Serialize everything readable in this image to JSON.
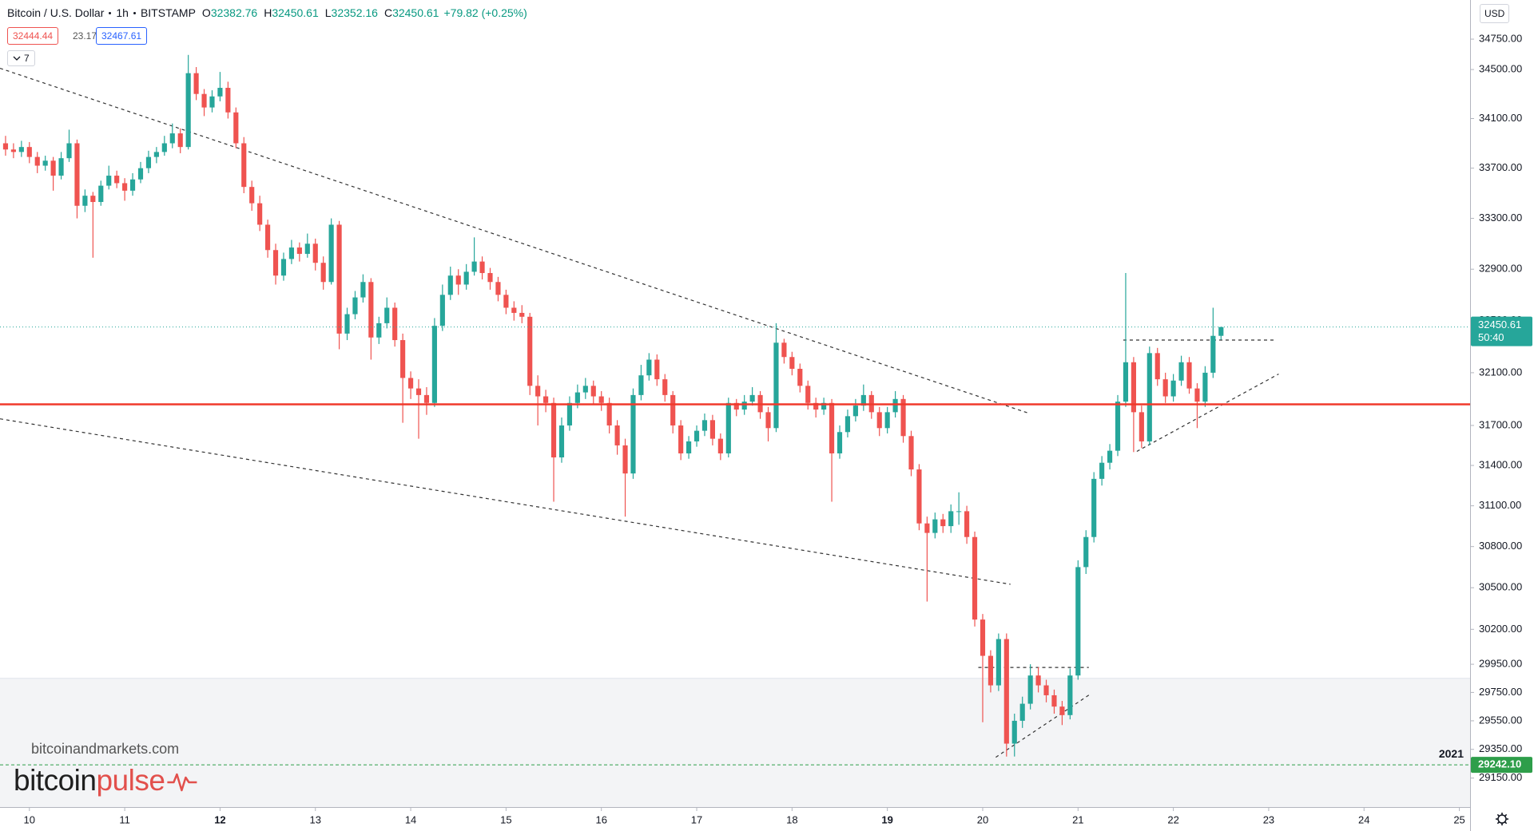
{
  "chart_data": {
    "type": "candlestick",
    "symbol": "Bitcoin / U.S. Dollar",
    "interval": "1h",
    "exchange": "BITSTAMP",
    "ohlc_labels": [
      "O",
      "H",
      "L",
      "C"
    ],
    "change": "+79.82 (+0.25%)",
    "bid": 32444.44,
    "spread": 23.17,
    "ask": 32467.61,
    "indicator_count": 7,
    "currency": "USD",
    "countdown": "50:40",
    "watermark": "bitcoinandmarkets.com",
    "logo": [
      "bitcoin",
      "pulse"
    ],
    "log": true,
    "grid": false,
    "up_color": "#26a69a",
    "down_color": "#ef5350",
    "xlim": [
      -7.4,
      362.7
    ],
    "ylim": [
      28950,
      35075
    ],
    "xticks": [
      {
        "value": 0,
        "label": "10"
      },
      {
        "value": 24,
        "label": "11"
      },
      {
        "value": 48,
        "label": "12",
        "bold": true
      },
      {
        "value": 72,
        "label": "13"
      },
      {
        "value": 96,
        "label": "14"
      },
      {
        "value": 120,
        "label": "15"
      },
      {
        "value": 144,
        "label": "16"
      },
      {
        "value": 168,
        "label": "17"
      },
      {
        "value": 192,
        "label": "18"
      },
      {
        "value": 216,
        "label": "19",
        "bold": true
      },
      {
        "value": 240,
        "label": "20"
      },
      {
        "value": 264,
        "label": "21"
      },
      {
        "value": 288,
        "label": "22"
      },
      {
        "value": 312,
        "label": "23"
      },
      {
        "value": 336,
        "label": "24"
      },
      {
        "value": 360,
        "label": "25"
      }
    ],
    "yticks": [
      {
        "value": 34750,
        "label": "34750.00"
      },
      {
        "value": 34500,
        "label": "34500.00"
      },
      {
        "value": 34100,
        "label": "34100.00"
      },
      {
        "value": 33700,
        "label": "33700.00"
      },
      {
        "value": 33300,
        "label": "33300.00"
      },
      {
        "value": 32900,
        "label": "32900.00"
      },
      {
        "value": 32500,
        "label": "32500.00"
      },
      {
        "value": 32100,
        "label": "32100.00"
      },
      {
        "value": 31700,
        "label": "31700.00"
      },
      {
        "value": 31400,
        "label": "31400.00"
      },
      {
        "value": 31100,
        "label": "31100.00"
      },
      {
        "value": 30800,
        "label": "30800.00"
      },
      {
        "value": 30500,
        "label": "30500.00"
      },
      {
        "value": 30200,
        "label": "30200.00"
      },
      {
        "value": 29950,
        "label": "29950.00"
      },
      {
        "value": 29750,
        "label": "29750.00"
      },
      {
        "value": 29550,
        "label": "29550.00"
      },
      {
        "value": 29350,
        "label": "29350.00"
      },
      {
        "value": 29150,
        "label": "29150.00"
      }
    ],
    "shaded_zone": {
      "top": 29850,
      "color": "#f3f4f6"
    },
    "horizontal_line": {
      "value": 31860,
      "color": "#f0392b"
    },
    "year_line": {
      "label": "2021",
      "price": {
        "value": 29242.1,
        "label": "29242.10"
      },
      "color": "#2e9e4a"
    },
    "trendlines": [
      {
        "points": [
          [
            -7.4,
            34510
          ],
          [
            251.2,
            31796
          ]
        ]
      },
      {
        "points": [
          [
            -7.4,
            31750
          ],
          [
            247,
            30525
          ]
        ]
      },
      {
        "points": [
          [
            275.4,
            32350
          ],
          [
            313.5,
            32350
          ]
        ]
      },
      {
        "points": [
          [
            278.8,
            31505
          ],
          [
            314.5,
            32090
          ]
        ]
      },
      {
        "points": [
          [
            238.9,
            29927
          ],
          [
            266.7,
            29927
          ]
        ]
      },
      {
        "points": [
          [
            243.3,
            29295
          ],
          [
            267.2,
            29740
          ]
        ]
      }
    ],
    "x": [
      -6,
      -4,
      -2,
      0,
      2,
      4,
      6,
      8,
      10,
      12,
      14,
      16,
      18,
      20,
      22,
      24,
      26,
      28,
      30,
      32,
      34,
      36,
      38,
      40,
      42,
      44,
      46,
      48,
      50,
      52,
      54,
      56,
      58,
      60,
      62,
      64,
      66,
      68,
      70,
      72,
      74,
      76,
      78,
      80,
      82,
      84,
      86,
      88,
      90,
      92,
      94,
      96,
      98,
      100,
      102,
      104,
      106,
      108,
      110,
      112,
      114,
      116,
      118,
      120,
      122,
      124,
      126,
      128,
      130,
      132,
      134,
      136,
      138,
      140,
      142,
      144,
      146,
      148,
      150,
      152,
      154,
      156,
      158,
      160,
      162,
      164,
      166,
      168,
      170,
      172,
      174,
      176,
      178,
      180,
      182,
      184,
      186,
      188,
      190,
      192,
      194,
      196,
      198,
      200,
      202,
      204,
      206,
      208,
      210,
      212,
      214,
      216,
      218,
      220,
      222,
      224,
      226,
      228,
      230,
      232,
      234,
      236,
      238,
      240,
      242,
      244,
      246,
      248,
      250,
      252,
      254,
      256,
      258,
      260,
      262,
      264,
      266,
      268,
      270,
      272,
      274,
      276,
      278,
      280,
      282,
      284,
      286,
      288,
      290,
      292,
      294,
      296,
      298,
      300
    ],
    "candles": [
      [
        33900,
        33960,
        33800,
        33850
      ],
      [
        33850,
        33900,
        33780,
        33830
      ],
      [
        33830,
        33920,
        33790,
        33870
      ],
      [
        33870,
        33910,
        33740,
        33790
      ],
      [
        33790,
        33830,
        33660,
        33720
      ],
      [
        33720,
        33800,
        33680,
        33760
      ],
      [
        33760,
        33790,
        33520,
        33640
      ],
      [
        33640,
        33830,
        33610,
        33780
      ],
      [
        33780,
        34010,
        33750,
        33900
      ],
      [
        33900,
        33930,
        33300,
        33400
      ],
      [
        33400,
        33530,
        33350,
        33480
      ],
      [
        33480,
        33510,
        32990,
        33430
      ],
      [
        33430,
        33600,
        33400,
        33560
      ],
      [
        33560,
        33720,
        33530,
        33640
      ],
      [
        33640,
        33680,
        33540,
        33580
      ],
      [
        33580,
        33620,
        33440,
        33520
      ],
      [
        33520,
        33660,
        33480,
        33610
      ],
      [
        33610,
        33750,
        33580,
        33700
      ],
      [
        33700,
        33840,
        33660,
        33790
      ],
      [
        33790,
        33870,
        33740,
        33830
      ],
      [
        33830,
        33960,
        33800,
        33900
      ],
      [
        33900,
        34060,
        33860,
        33980
      ],
      [
        33980,
        34020,
        33820,
        33870
      ],
      [
        33870,
        34620,
        33850,
        34470
      ],
      [
        34470,
        34520,
        34250,
        34300
      ],
      [
        34300,
        34340,
        34120,
        34190
      ],
      [
        34190,
        34330,
        34150,
        34280
      ],
      [
        34280,
        34480,
        34240,
        34350
      ],
      [
        34350,
        34400,
        34100,
        34150
      ],
      [
        34150,
        34190,
        33860,
        33900
      ],
      [
        33900,
        33950,
        33500,
        33550
      ],
      [
        33550,
        33600,
        33360,
        33420
      ],
      [
        33420,
        33480,
        33200,
        33250
      ],
      [
        33250,
        33290,
        32990,
        33050
      ],
      [
        33050,
        33100,
        32780,
        32850
      ],
      [
        32850,
        33030,
        32810,
        32980
      ],
      [
        32980,
        33130,
        32940,
        33070
      ],
      [
        33070,
        33110,
        32960,
        33020
      ],
      [
        33020,
        33180,
        32990,
        33100
      ],
      [
        33100,
        33140,
        32890,
        32950
      ],
      [
        32950,
        33000,
        32740,
        32800
      ],
      [
        32800,
        33300,
        32780,
        33250
      ],
      [
        33250,
        33280,
        32280,
        32400
      ],
      [
        32400,
        32600,
        32350,
        32550
      ],
      [
        32550,
        32730,
        32510,
        32680
      ],
      [
        32680,
        32860,
        32640,
        32800
      ],
      [
        32800,
        32830,
        32200,
        32370
      ],
      [
        32370,
        32530,
        32320,
        32480
      ],
      [
        32480,
        32680,
        32440,
        32600
      ],
      [
        32600,
        32640,
        32300,
        32350
      ],
      [
        32350,
        32400,
        31720,
        32060
      ],
      [
        32060,
        32110,
        31900,
        31980
      ],
      [
        31980,
        32050,
        31600,
        31930
      ],
      [
        31930,
        31990,
        31780,
        31870
      ],
      [
        31870,
        32520,
        31840,
        32460
      ],
      [
        32460,
        32780,
        32420,
        32700
      ],
      [
        32700,
        32920,
        32660,
        32850
      ],
      [
        32850,
        32900,
        32700,
        32780
      ],
      [
        32780,
        32940,
        32740,
        32880
      ],
      [
        32880,
        33150,
        32850,
        32960
      ],
      [
        32960,
        33000,
        32820,
        32870
      ],
      [
        32870,
        32910,
        32740,
        32800
      ],
      [
        32800,
        32840,
        32650,
        32700
      ],
      [
        32700,
        32740,
        32550,
        32600
      ],
      [
        32600,
        32650,
        32500,
        32560
      ],
      [
        32560,
        32620,
        32480,
        32530
      ],
      [
        32530,
        32560,
        31930,
        32000
      ],
      [
        32000,
        32080,
        31700,
        31920
      ],
      [
        31920,
        31970,
        31800,
        31870
      ],
      [
        31870,
        31910,
        31130,
        31460
      ],
      [
        31460,
        31760,
        31420,
        31700
      ],
      [
        31700,
        31920,
        31660,
        31870
      ],
      [
        31870,
        32010,
        31830,
        31950
      ],
      [
        31950,
        32060,
        31900,
        32000
      ],
      [
        32000,
        32040,
        31860,
        31920
      ],
      [
        31920,
        31960,
        31810,
        31870
      ],
      [
        31870,
        31910,
        31640,
        31700
      ],
      [
        31700,
        31740,
        31480,
        31550
      ],
      [
        31550,
        31600,
        31020,
        31340
      ],
      [
        31340,
        31980,
        31300,
        31930
      ],
      [
        31930,
        32160,
        31890,
        32080
      ],
      [
        32080,
        32250,
        32040,
        32200
      ],
      [
        32200,
        32240,
        32000,
        32050
      ],
      [
        32050,
        32090,
        31880,
        31930
      ],
      [
        31930,
        31960,
        31640,
        31700
      ],
      [
        31700,
        31740,
        31440,
        31490
      ],
      [
        31490,
        31620,
        31450,
        31580
      ],
      [
        31580,
        31700,
        31540,
        31660
      ],
      [
        31660,
        31790,
        31620,
        31740
      ],
      [
        31740,
        31780,
        31550,
        31600
      ],
      [
        31600,
        31640,
        31440,
        31490
      ],
      [
        31490,
        31910,
        31460,
        31870
      ],
      [
        31870,
        31900,
        31770,
        31820
      ],
      [
        31820,
        31930,
        31780,
        31880
      ],
      [
        31880,
        31990,
        31850,
        31930
      ],
      [
        31930,
        31960,
        31750,
        31800
      ],
      [
        31800,
        31840,
        31580,
        31680
      ],
      [
        31680,
        32480,
        31650,
        32330
      ],
      [
        32330,
        32360,
        32170,
        32220
      ],
      [
        32220,
        32260,
        32080,
        32130
      ],
      [
        32130,
        32170,
        31950,
        32000
      ],
      [
        32000,
        32040,
        31820,
        31870
      ],
      [
        31870,
        31910,
        31760,
        31820
      ],
      [
        31820,
        31910,
        31780,
        31870
      ],
      [
        31870,
        31900,
        31130,
        31490
      ],
      [
        31490,
        31700,
        31450,
        31650
      ],
      [
        31650,
        31820,
        31610,
        31770
      ],
      [
        31770,
        31900,
        31730,
        31850
      ],
      [
        31850,
        32010,
        31810,
        31930
      ],
      [
        31930,
        31960,
        31750,
        31800
      ],
      [
        31800,
        31840,
        31620,
        31680
      ],
      [
        31680,
        31840,
        31640,
        31800
      ],
      [
        31800,
        31960,
        31760,
        31900
      ],
      [
        31900,
        31930,
        31570,
        31620
      ],
      [
        31620,
        31660,
        31320,
        31370
      ],
      [
        31370,
        31410,
        30920,
        30970
      ],
      [
        30970,
        31020,
        30400,
        30900
      ],
      [
        30900,
        31050,
        30860,
        31000
      ],
      [
        31000,
        31040,
        30900,
        30950
      ],
      [
        30950,
        31110,
        30900,
        31060
      ],
      [
        31060,
        31200,
        30960,
        31060
      ],
      [
        31060,
        31100,
        30820,
        30870
      ],
      [
        30870,
        30910,
        30220,
        30270
      ],
      [
        30270,
        30310,
        29540,
        30010
      ],
      [
        30010,
        30050,
        29750,
        29800
      ],
      [
        29800,
        30170,
        29760,
        30130
      ],
      [
        30130,
        30170,
        29300,
        29390
      ],
      [
        29390,
        29600,
        29300,
        29550
      ],
      [
        29550,
        29720,
        29500,
        29670
      ],
      [
        29670,
        29950,
        29630,
        29870
      ],
      [
        29870,
        29930,
        29750,
        29800
      ],
      [
        29800,
        29840,
        29680,
        29730
      ],
      [
        29730,
        29770,
        29600,
        29650
      ],
      [
        29650,
        29690,
        29520,
        29590
      ],
      [
        29590,
        29920,
        29560,
        29870
      ],
      [
        29870,
        30700,
        29840,
        30650
      ],
      [
        30650,
        30920,
        30600,
        30870
      ],
      [
        30870,
        31350,
        30830,
        31300
      ],
      [
        31300,
        31470,
        31250,
        31420
      ],
      [
        31420,
        31560,
        31370,
        31510
      ],
      [
        31510,
        31930,
        31470,
        31880
      ],
      [
        31880,
        32870,
        31840,
        32180
      ],
      [
        32180,
        32220,
        31500,
        31800
      ],
      [
        31800,
        31850,
        31530,
        31580
      ],
      [
        31580,
        32300,
        31550,
        32250
      ],
      [
        32250,
        32290,
        32000,
        32050
      ],
      [
        32050,
        32100,
        31870,
        31920
      ],
      [
        31920,
        32090,
        31880,
        32040
      ],
      [
        32040,
        32230,
        32000,
        32180
      ],
      [
        32180,
        32220,
        31940,
        31980
      ],
      [
        31980,
        32020,
        31680,
        31880
      ],
      [
        31880,
        32150,
        31840,
        32100
      ],
      [
        32100,
        32600,
        32060,
        32382.76
      ],
      [
        32382.76,
        32450.61,
        32352.16,
        32450.61
      ]
    ]
  }
}
